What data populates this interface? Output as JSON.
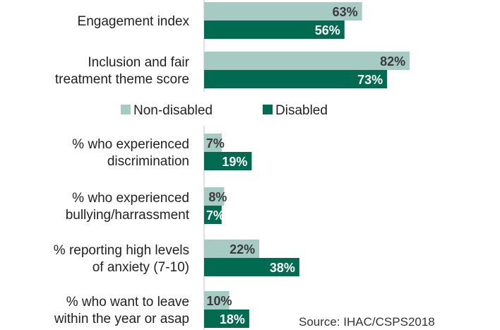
{
  "chart_data": {
    "type": "bar",
    "orientation": "horizontal",
    "categories": [
      [
        "Engagement index"
      ],
      [
        "Inclusion and fair",
        "treatment theme score"
      ],
      [
        "% who experienced",
        "discrimination"
      ],
      [
        "% who experienced",
        "bullying/harrassment"
      ],
      [
        "% reporting high levels",
        "of anxiety (7-10)"
      ],
      [
        "% who want to leave",
        "within the year or asap"
      ]
    ],
    "series": [
      {
        "name": "Non-disabled",
        "color": "#a6cbc3",
        "label_color": "#3a3a3a",
        "values": [
          63,
          82,
          7,
          8,
          22,
          10
        ]
      },
      {
        "name": "Disabled",
        "color": "#006b50",
        "label_color": "#ffffff",
        "values": [
          56,
          73,
          19,
          7,
          38,
          18
        ]
      }
    ],
    "value_suffix": "%",
    "xlim": [
      0,
      100
    ],
    "grid": false,
    "legend": {
      "placement": "middle",
      "items": [
        "Non-disabled",
        "Disabled"
      ]
    },
    "source": "Source: IHAC/CSPS2018"
  }
}
